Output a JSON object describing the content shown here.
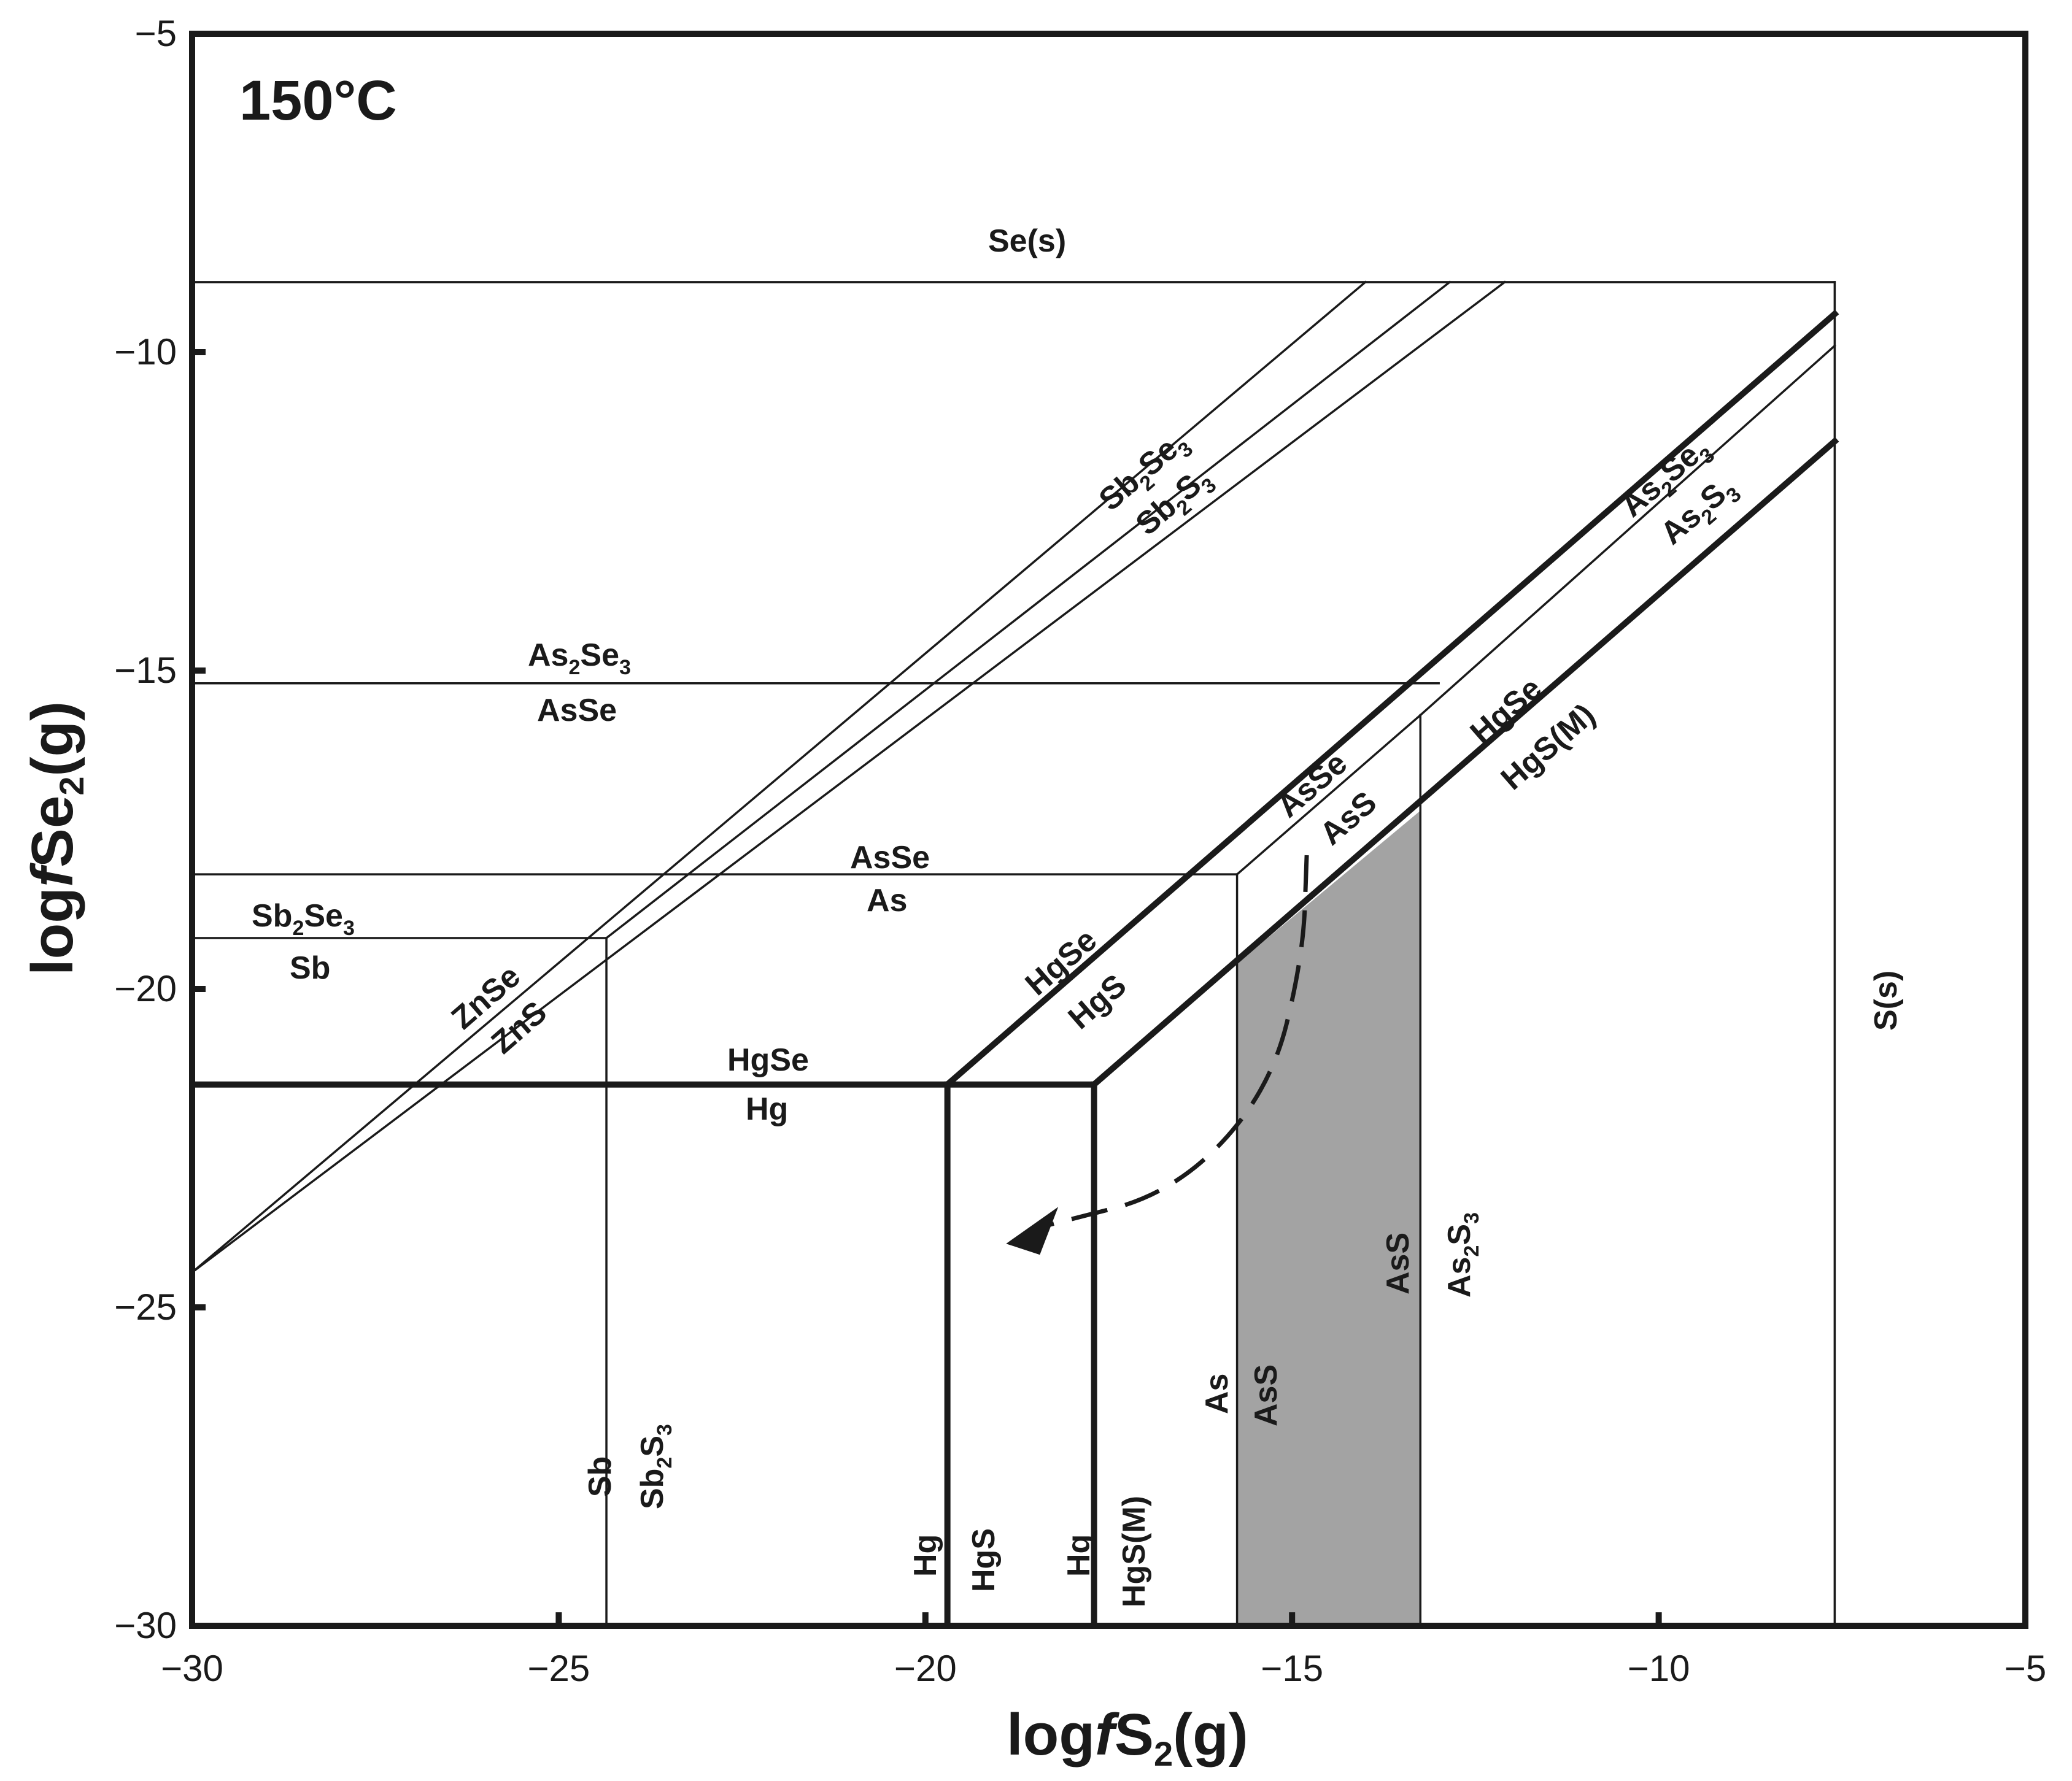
{
  "chart_data": {
    "type": "line",
    "title": "150°C",
    "xlabel_main": "logfS",
    "xlabel_f": "f",
    "xlabel": "logfS2(g)",
    "ylabel": "logfSe2(g)",
    "xlim": [
      -30,
      -5
    ],
    "ylim": [
      -30,
      -5
    ],
    "x_ticks": [
      {
        "v": -30,
        "t": "−30"
      },
      {
        "v": -25,
        "t": "−25"
      },
      {
        "v": -20,
        "t": "−20"
      },
      {
        "v": -15,
        "t": "−15"
      },
      {
        "v": -10,
        "t": "−10"
      },
      {
        "v": -5,
        "t": "−5"
      }
    ],
    "y_ticks": [
      {
        "v": -30,
        "t": "−30"
      },
      {
        "v": -25,
        "t": "−25"
      },
      {
        "v": -20,
        "t": "−20"
      },
      {
        "v": -15,
        "t": "−15"
      },
      {
        "v": -10,
        "t": "−10"
      },
      {
        "v": -5,
        "t": "−5"
      }
    ],
    "colors": {
      "line": "#1a1a1a",
      "shade": "#a3a3a3"
    },
    "shaded_region": {
      "label": "As2S3 / AsS stability field",
      "polygon": [
        [
          -15.75,
          -30
        ],
        [
          -13.25,
          -30
        ],
        [
          -13.25,
          -17.2
        ],
        [
          -15.75,
          -19.6
        ]
      ]
    },
    "boundaries": [
      {
        "name": "Se(s) limit",
        "weight": "thin",
        "points": [
          [
            -30,
            -8.9
          ],
          [
            -7.6,
            -8.9
          ]
        ]
      },
      {
        "name": "S(s) limit",
        "weight": "thin",
        "points": [
          [
            -7.6,
            -8.9
          ],
          [
            -7.6,
            -30
          ]
        ]
      },
      {
        "name": "Sb2Se3/Sb2S3",
        "weight": "thin",
        "points": [
          [
            -30,
            -24.45
          ],
          [
            -12.1,
            -8.9
          ]
        ]
      },
      {
        "name": "ZnSe/ZnS",
        "weight": "thin",
        "points": [
          [
            -30,
            -24.45
          ],
          [
            -14.0,
            -8.9
          ]
        ]
      },
      {
        "name": "ZnSe/ZnS upper",
        "weight": "thin",
        "points": [
          [
            -24.35,
            -19.2
          ],
          [
            -12.85,
            -8.9
          ]
        ]
      },
      {
        "name": "Sb2Se3/Sb",
        "weight": "thin",
        "points": [
          [
            -30,
            -19.2
          ],
          [
            -24.35,
            -19.2
          ]
        ]
      },
      {
        "name": "Sb/Sb2S3",
        "weight": "thin",
        "points": [
          [
            -24.35,
            -19.2
          ],
          [
            -24.35,
            -30
          ]
        ]
      },
      {
        "name": "AsSe/As",
        "weight": "thin",
        "points": [
          [
            -30,
            -18.2
          ],
          [
            -15.75,
            -18.2
          ]
        ]
      },
      {
        "name": "As/AsS",
        "weight": "thin",
        "points": [
          [
            -15.75,
            -18.2
          ],
          [
            -15.75,
            -30
          ]
        ]
      },
      {
        "name": "AsSe/AsS",
        "weight": "thin",
        "points": [
          [
            -15.75,
            -18.2
          ],
          [
            -13.25,
            -15.7
          ]
        ]
      },
      {
        "name": "As2Se3/AsSe",
        "weight": "thin",
        "points": [
          [
            -30,
            -15.2
          ],
          [
            -13.0,
            -15.2
          ]
        ]
      },
      {
        "name": "AsS/As2S3",
        "weight": "thin",
        "points": [
          [
            -13.25,
            -15.7
          ],
          [
            -13.25,
            -30
          ]
        ]
      },
      {
        "name": "As2Se3/As2S3",
        "weight": "thin",
        "points": [
          [
            -13.25,
            -15.7
          ],
          [
            -7.6,
            -9.9
          ]
        ]
      },
      {
        "name": "HgSe/Hg",
        "weight": "thick",
        "points": [
          [
            -30,
            -21.5
          ],
          [
            -17.7,
            -21.5
          ]
        ]
      },
      {
        "name": "Hg/HgS",
        "weight": "thick",
        "points": [
          [
            -19.7,
            -21.5
          ],
          [
            -19.7,
            -30
          ]
        ]
      },
      {
        "name": "Hg/HgS(M)",
        "weight": "thick",
        "points": [
          [
            -17.7,
            -21.5
          ],
          [
            -17.7,
            -30
          ]
        ]
      },
      {
        "name": "HgSe/HgS",
        "weight": "thick",
        "points": [
          [
            -19.7,
            -21.5
          ],
          [
            -7.6,
            -9.4
          ]
        ]
      },
      {
        "name": "HgSe/HgS(M)",
        "weight": "thick",
        "points": [
          [
            -17.7,
            -21.5
          ],
          [
            -7.6,
            -11.4
          ]
        ]
      }
    ],
    "path_arrow": {
      "points": [
        [
          -14.8,
          -17.9
        ],
        [
          -14.85,
          -19.5
        ],
        [
          -15.3,
          -21.6
        ],
        [
          -16.6,
          -23.2
        ],
        [
          -18.3,
          -23.7
        ]
      ],
      "head": [
        -18.9,
        -24.0
      ]
    }
  },
  "labels": {
    "se_s": "Se(s)",
    "s_s": "S(s)",
    "sb2se3_s": "Sb",
    "sb2se3_sub": "2",
    "sb2se3_se": "Se",
    "sb2se3_sub3": "3",
    "sb2s3_s": "Sb",
    "sb2s3_sub": "2",
    "sb2s3_mid": "S",
    "sb2s3_sub3": "3",
    "as2se3_as": "As",
    "as2se3_sub": "2",
    "as2se3_se": "Se",
    "as2se3_sub3": "3",
    "as2s3_as": "As",
    "as2s3_sub": "2",
    "as2s3_s": "S",
    "as2s3_sub3": "3",
    "asse": "AsSe",
    "as": "As",
    "ass": "AsS",
    "sb": "Sb",
    "znse": "ZnSe",
    "zns": "ZnS",
    "hgse": "HgSe",
    "hg": "Hg",
    "hgs": "HgS",
    "hgs_m": "HgS(M)"
  }
}
